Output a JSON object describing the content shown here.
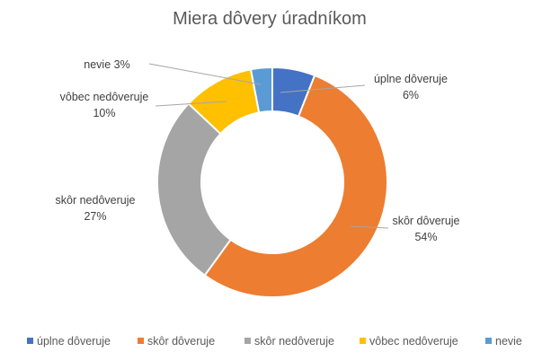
{
  "chart_data": {
    "type": "pie",
    "donut": true,
    "title": "Miera dôvery úradníkom",
    "categories": [
      "úplne dôveruje",
      "skôr dôveruje",
      "skôr nedôveruje",
      "vôbec nedôveruje",
      "nevie"
    ],
    "values": [
      6,
      54,
      27,
      10,
      3
    ],
    "value_labels": [
      "6%",
      "54%",
      "27%",
      "10%",
      "3%"
    ],
    "colors": [
      "#4472C4",
      "#ED7D31",
      "#A5A5A5",
      "#FFC000",
      "#5B9BD5"
    ],
    "legend_position": "bottom"
  }
}
